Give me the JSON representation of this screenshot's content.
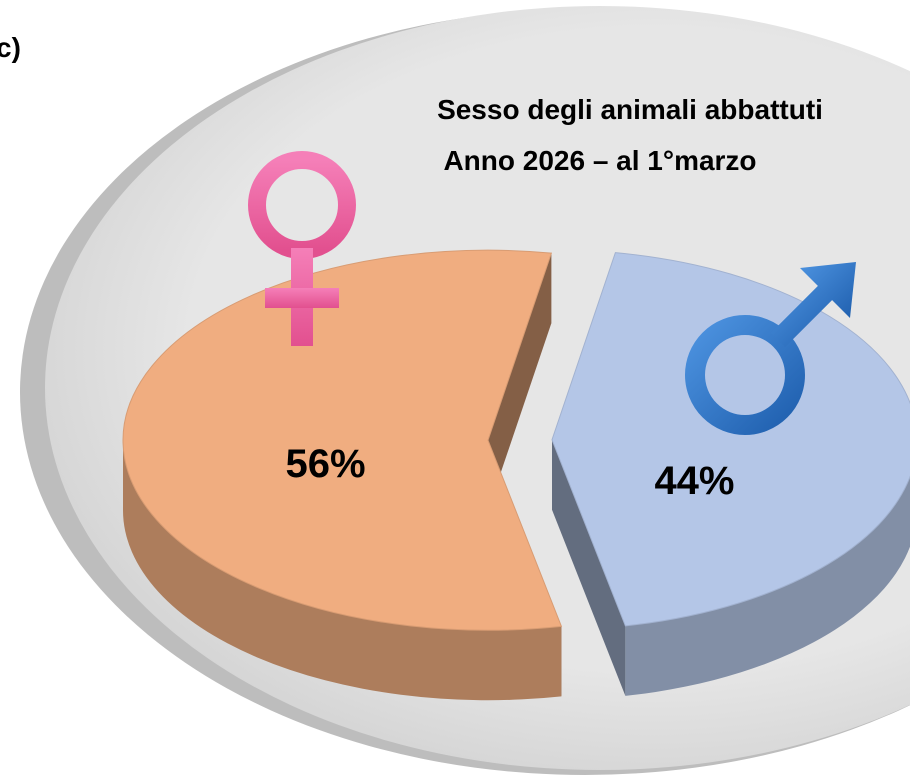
{
  "chart_data": {
    "type": "pie",
    "panel_label": "c)",
    "title": "Sesso degli animali abbattuti",
    "subtitle": "Anno 2026 – al 1°marzo",
    "categories": [
      null,
      null
    ],
    "values": [
      56,
      44
    ],
    "value_labels": [
      "56%",
      "44%"
    ],
    "colors": [
      "#f0ad80",
      "#b4c6e7"
    ]
  }
}
